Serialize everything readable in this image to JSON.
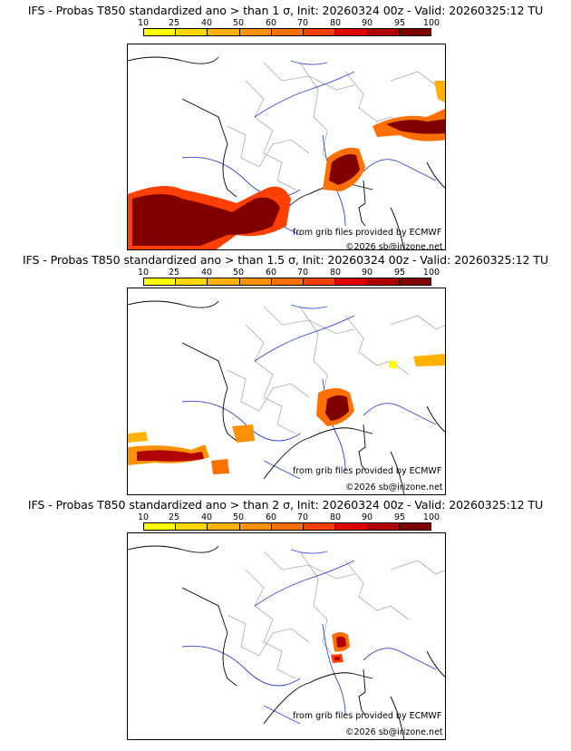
{
  "legend": {
    "labels": [
      "10",
      "25",
      "40",
      "50",
      "60",
      "70",
      "80",
      "90",
      "95",
      "100"
    ],
    "colors": [
      "#ffff00",
      "#ffd700",
      "#ffb000",
      "#ff9000",
      "#ff7000",
      "#ff4000",
      "#e00000",
      "#b00000",
      "#800000",
      "#600000"
    ]
  },
  "panels": [
    {
      "title": "IFS - Probas T850  standardized ano > than 1 σ, Init: 20260324 00z - Valid: 20260325:12 TU",
      "source": "from grib files provided by ECMWF",
      "copyright": "©2026 sb@irizone.net"
    },
    {
      "title": "IFS - Probas T850  standardized ano > than 1.5 σ, Init: 20260324 00z - Valid: 20260325:12 TU",
      "source": "from grib files provided by ECMWF",
      "copyright": "©2026 sb@irizone.net"
    },
    {
      "title": "IFS - Probas T850  standardized ano > than 2 σ, Init: 20260324 00z - Valid: 20260325:12 TU",
      "source": "from grib files provided by ECMWF",
      "copyright": "©2026 sb@irizone.net"
    }
  ]
}
